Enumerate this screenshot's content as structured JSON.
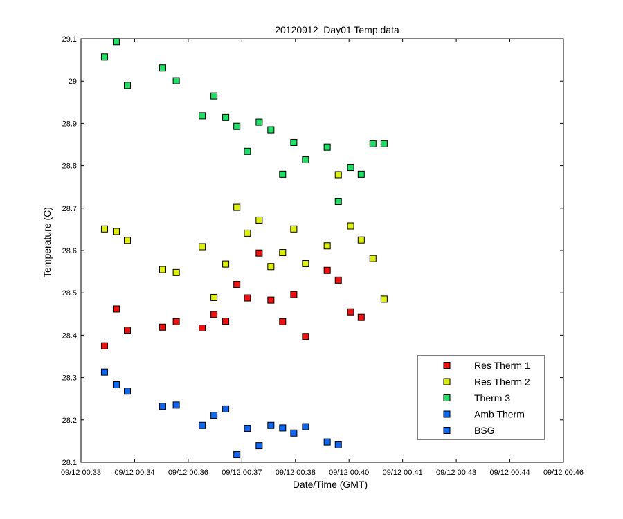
{
  "chart_data": {
    "type": "scatter",
    "title": "20120912_Day01 Temp data",
    "xlabel": "Date/Time (GMT)",
    "ylabel": "Temperature (C)",
    "x_ticks": [
      "09/12 00:33",
      "09/12 00:34",
      "09/12 00:36",
      "09/12 00:37",
      "09/12 00:38",
      "09/12 00:40",
      "09/12 00:41",
      "09/12 00:43",
      "09/12 00:44",
      "09/12 00:46"
    ],
    "y_ticks": [
      "28.1",
      "28.2",
      "28.3",
      "28.4",
      "28.5",
      "28.6",
      "28.7",
      "28.8",
      "28.9",
      "29",
      "29.1"
    ],
    "xlim": [
      "00:33:00",
      "00:46:00"
    ],
    "ylim": [
      28.1,
      29.1
    ],
    "grid": false,
    "legend_position": "bottom-right",
    "series": [
      {
        "name": "Res Therm 1",
        "color": "#ee1111",
        "x": [
          "00:33:38",
          "00:33:57",
          "00:34:15",
          "00:35:12",
          "00:35:34",
          "00:36:16",
          "00:36:35",
          "00:36:54",
          "00:37:12",
          "00:37:29",
          "00:37:48",
          "00:38:07",
          "00:38:26",
          "00:38:44",
          "00:39:03",
          "00:39:38",
          "00:39:56",
          "00:40:16",
          "00:40:33"
        ],
        "values": [
          28.375,
          28.462,
          28.412,
          28.419,
          28.432,
          28.417,
          28.449,
          28.433,
          28.52,
          28.488,
          28.594,
          28.483,
          28.432,
          28.496,
          28.397,
          28.553,
          28.53,
          28.455,
          28.442
        ]
      },
      {
        "name": "Res Therm 2",
        "color": "#ddee11",
        "x": [
          "00:33:38",
          "00:33:57",
          "00:34:15",
          "00:35:12",
          "00:35:34",
          "00:36:16",
          "00:36:35",
          "00:36:54",
          "00:37:12",
          "00:37:29",
          "00:37:48",
          "00:38:07",
          "00:38:26",
          "00:38:44",
          "00:39:03",
          "00:39:38",
          "00:39:56",
          "00:40:16",
          "00:40:33",
          "00:40:52",
          "00:41:10"
        ],
        "values": [
          28.651,
          28.645,
          28.624,
          28.555,
          28.548,
          28.609,
          28.489,
          28.568,
          28.702,
          28.641,
          28.672,
          28.562,
          28.595,
          28.651,
          28.569,
          28.611,
          28.779,
          28.658,
          28.625,
          28.581,
          28.485
        ]
      },
      {
        "name": "Therm 3",
        "color": "#22dd66",
        "x": [
          "00:33:38",
          "00:33:57",
          "00:34:15",
          "00:35:12",
          "00:35:34",
          "00:36:16",
          "00:36:35",
          "00:36:54",
          "00:37:12",
          "00:37:29",
          "00:37:48",
          "00:38:07",
          "00:38:26",
          "00:38:44",
          "00:39:03",
          "00:39:38",
          "00:39:56",
          "00:40:16",
          "00:40:33",
          "00:40:52",
          "00:41:10"
        ],
        "values": [
          29.057,
          29.093,
          28.99,
          29.031,
          29.001,
          28.918,
          28.965,
          28.914,
          28.893,
          28.834,
          28.903,
          28.885,
          28.78,
          28.855,
          28.814,
          28.844,
          28.716,
          28.796,
          28.78,
          28.852,
          28.852
        ]
      },
      {
        "name": "Amb Therm",
        "color": "#1166ee",
        "x": [
          "00:33:38",
          "00:33:57",
          "00:34:15",
          "00:35:12",
          "00:35:34",
          "00:36:16",
          "00:36:35",
          "00:36:54",
          "00:37:12",
          "00:37:29",
          "00:37:48",
          "00:38:07",
          "00:38:26",
          "00:38:44",
          "00:39:03",
          "00:39:38",
          "00:39:56"
        ],
        "values": [
          28.313,
          28.283,
          28.268,
          28.232,
          28.235,
          28.187,
          28.211,
          28.226,
          28.118,
          28.18,
          28.139,
          28.187,
          28.181,
          28.169,
          28.184,
          28.148,
          28.141
        ]
      },
      {
        "name": "BSG",
        "color": "#1166ee",
        "x": [],
        "values": []
      }
    ]
  }
}
